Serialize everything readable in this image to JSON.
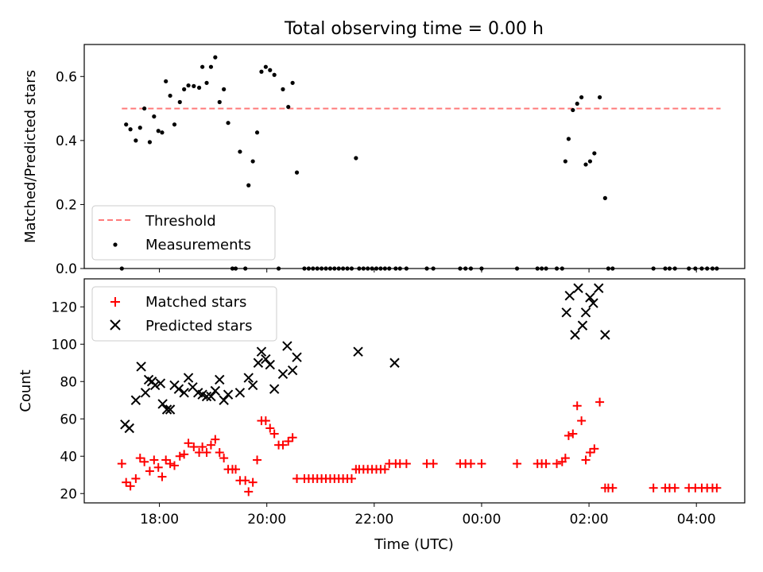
{
  "title": "Total observing time = 0.00 h",
  "chart_data": [
    {
      "type": "scatter",
      "panel": "top",
      "ylabel": "Matched/Predicted stars",
      "ylim": [
        0,
        0.7
      ],
      "yticks": [
        0.0,
        0.2,
        0.4,
        0.6
      ],
      "ytick_labels": [
        "0.0",
        "0.2",
        "0.4",
        "0.6"
      ],
      "xlim": [
        16.6,
        28.9
      ],
      "threshold": {
        "name": "Threshold",
        "value": 0.5,
        "x_start": 17.3,
        "x_end": 28.45,
        "color": "#ff7b7b"
      },
      "legend": {
        "position": "lower-left",
        "entries": [
          "Threshold",
          "Measurements"
        ]
      },
      "series": [
        {
          "name": "Measurements",
          "marker": "dot",
          "color": "#000000",
          "points": [
            [
              17.3,
              0.0
            ],
            [
              17.38,
              0.45
            ],
            [
              17.46,
              0.435
            ],
            [
              17.56,
              0.4
            ],
            [
              17.64,
              0.44
            ],
            [
              17.72,
              0.5
            ],
            [
              17.82,
              0.395
            ],
            [
              17.9,
              0.475
            ],
            [
              17.98,
              0.43
            ],
            [
              18.05,
              0.425
            ],
            [
              18.12,
              0.585
            ],
            [
              18.2,
              0.54
            ],
            [
              18.28,
              0.45
            ],
            [
              18.38,
              0.52
            ],
            [
              18.46,
              0.56
            ],
            [
              18.54,
              0.572
            ],
            [
              18.64,
              0.57
            ],
            [
              18.74,
              0.565
            ],
            [
              18.8,
              0.63
            ],
            [
              18.88,
              0.58
            ],
            [
              18.96,
              0.63
            ],
            [
              19.04,
              0.66
            ],
            [
              19.12,
              0.52
            ],
            [
              19.2,
              0.56
            ],
            [
              19.28,
              0.455
            ],
            [
              19.36,
              0.0
            ],
            [
              19.42,
              0.0
            ],
            [
              19.5,
              0.365
            ],
            [
              19.6,
              0.0
            ],
            [
              19.66,
              0.26
            ],
            [
              19.74,
              0.335
            ],
            [
              19.82,
              0.425
            ],
            [
              19.9,
              0.615
            ],
            [
              19.98,
              0.63
            ],
            [
              20.06,
              0.62
            ],
            [
              20.14,
              0.605
            ],
            [
              20.22,
              0.0
            ],
            [
              20.3,
              0.56
            ],
            [
              20.4,
              0.505
            ],
            [
              20.48,
              0.58
            ],
            [
              20.56,
              0.3
            ],
            [
              20.7,
              0.0
            ],
            [
              20.78,
              0.0
            ],
            [
              20.86,
              0.0
            ],
            [
              20.94,
              0.0
            ],
            [
              21.02,
              0.0
            ],
            [
              21.1,
              0.0
            ],
            [
              21.18,
              0.0
            ],
            [
              21.26,
              0.0
            ],
            [
              21.34,
              0.0
            ],
            [
              21.42,
              0.0
            ],
            [
              21.5,
              0.0
            ],
            [
              21.58,
              0.0
            ],
            [
              21.66,
              0.345
            ],
            [
              21.72,
              0.0
            ],
            [
              21.8,
              0.0
            ],
            [
              21.88,
              0.0
            ],
            [
              21.96,
              0.0
            ],
            [
              22.04,
              0.0
            ],
            [
              22.12,
              0.0
            ],
            [
              22.2,
              0.0
            ],
            [
              22.28,
              0.0
            ],
            [
              22.4,
              0.0
            ],
            [
              22.48,
              0.0
            ],
            [
              22.6,
              0.0
            ],
            [
              22.98,
              0.0
            ],
            [
              23.1,
              0.0
            ],
            [
              23.6,
              0.0
            ],
            [
              23.7,
              0.0
            ],
            [
              23.8,
              0.0
            ],
            [
              24.0,
              0.0
            ],
            [
              24.66,
              0.0
            ],
            [
              25.04,
              0.0
            ],
            [
              25.12,
              0.0
            ],
            [
              25.2,
              0.0
            ],
            [
              25.4,
              0.0
            ],
            [
              25.5,
              0.0
            ],
            [
              25.56,
              0.335
            ],
            [
              25.62,
              0.405
            ],
            [
              25.7,
              0.495
            ],
            [
              25.78,
              0.515
            ],
            [
              25.86,
              0.535
            ],
            [
              25.94,
              0.325
            ],
            [
              26.02,
              0.335
            ],
            [
              26.1,
              0.36
            ],
            [
              26.2,
              0.535
            ],
            [
              26.3,
              0.22
            ],
            [
              26.36,
              0.0
            ],
            [
              26.44,
              0.0
            ],
            [
              27.2,
              0.0
            ],
            [
              27.42,
              0.0
            ],
            [
              27.5,
              0.0
            ],
            [
              27.6,
              0.0
            ],
            [
              27.86,
              0.0
            ],
            [
              27.98,
              0.0
            ],
            [
              28.1,
              0.0
            ],
            [
              28.2,
              0.0
            ],
            [
              28.3,
              0.0
            ],
            [
              28.38,
              0.0
            ]
          ]
        }
      ]
    },
    {
      "type": "scatter",
      "panel": "bottom",
      "xlabel": "Time (UTC)",
      "ylabel": "Count",
      "ylim": [
        15,
        135
      ],
      "yticks": [
        20,
        40,
        60,
        80,
        100,
        120
      ],
      "ytick_labels": [
        "20",
        "40",
        "60",
        "80",
        "100",
        "120"
      ],
      "xlim": [
        16.6,
        28.9
      ],
      "xticks": [
        18,
        20,
        22,
        24,
        26,
        28
      ],
      "xtick_labels": [
        "18:00",
        "20:00",
        "22:00",
        "00:00",
        "02:00",
        "04:00"
      ],
      "legend": {
        "position": "top-left",
        "entries": [
          "Matched stars",
          "Predicted stars"
        ]
      },
      "series": [
        {
          "name": "Matched stars",
          "marker": "plus",
          "color": "#ff0000",
          "points": [
            [
              17.3,
              36
            ],
            [
              17.38,
              26
            ],
            [
              17.46,
              24
            ],
            [
              17.56,
              28
            ],
            [
              17.64,
              39
            ],
            [
              17.72,
              37
            ],
            [
              17.82,
              32
            ],
            [
              17.9,
              38
            ],
            [
              17.98,
              34
            ],
            [
              18.05,
              29
            ],
            [
              18.12,
              38
            ],
            [
              18.2,
              36
            ],
            [
              18.28,
              35
            ],
            [
              18.38,
              40
            ],
            [
              18.46,
              41
            ],
            [
              18.54,
              47
            ],
            [
              18.64,
              45
            ],
            [
              18.74,
              42
            ],
            [
              18.8,
              45
            ],
            [
              18.88,
              42
            ],
            [
              18.96,
              46
            ],
            [
              19.04,
              49
            ],
            [
              19.12,
              42
            ],
            [
              19.2,
              39
            ],
            [
              19.28,
              33
            ],
            [
              19.36,
              33
            ],
            [
              19.42,
              33
            ],
            [
              19.5,
              27
            ],
            [
              19.6,
              27
            ],
            [
              19.66,
              21
            ],
            [
              19.74,
              26
            ],
            [
              19.82,
              38
            ],
            [
              19.9,
              59
            ],
            [
              19.98,
              59
            ],
            [
              20.06,
              55
            ],
            [
              20.14,
              52
            ],
            [
              20.22,
              46
            ],
            [
              20.3,
              46
            ],
            [
              20.4,
              48
            ],
            [
              20.48,
              50
            ],
            [
              20.56,
              28
            ],
            [
              20.7,
              28
            ],
            [
              20.78,
              28
            ],
            [
              20.86,
              28
            ],
            [
              20.94,
              28
            ],
            [
              21.02,
              28
            ],
            [
              21.1,
              28
            ],
            [
              21.18,
              28
            ],
            [
              21.26,
              28
            ],
            [
              21.34,
              28
            ],
            [
              21.42,
              28
            ],
            [
              21.5,
              28
            ],
            [
              21.58,
              28
            ],
            [
              21.66,
              33
            ],
            [
              21.72,
              33
            ],
            [
              21.8,
              33
            ],
            [
              21.88,
              33
            ],
            [
              21.96,
              33
            ],
            [
              22.04,
              33
            ],
            [
              22.12,
              33
            ],
            [
              22.2,
              33
            ],
            [
              22.28,
              36
            ],
            [
              22.4,
              36
            ],
            [
              22.48,
              36
            ],
            [
              22.6,
              36
            ],
            [
              22.98,
              36
            ],
            [
              23.1,
              36
            ],
            [
              23.6,
              36
            ],
            [
              23.7,
              36
            ],
            [
              23.8,
              36
            ],
            [
              24.0,
              36
            ],
            [
              24.66,
              36
            ],
            [
              25.04,
              36
            ],
            [
              25.12,
              36
            ],
            [
              25.2,
              36
            ],
            [
              25.4,
              36
            ],
            [
              25.5,
              37
            ],
            [
              25.56,
              39
            ],
            [
              25.62,
              51
            ],
            [
              25.7,
              52
            ],
            [
              25.78,
              67
            ],
            [
              25.86,
              59
            ],
            [
              25.94,
              38
            ],
            [
              26.02,
              42
            ],
            [
              26.1,
              44
            ],
            [
              26.2,
              69
            ],
            [
              26.3,
              23
            ],
            [
              26.36,
              23
            ],
            [
              26.44,
              23
            ],
            [
              27.2,
              23
            ],
            [
              27.42,
              23
            ],
            [
              27.5,
              23
            ],
            [
              27.6,
              23
            ],
            [
              27.86,
              23
            ],
            [
              27.98,
              23
            ],
            [
              28.1,
              23
            ],
            [
              28.2,
              23
            ],
            [
              28.3,
              23
            ],
            [
              28.38,
              23
            ]
          ]
        },
        {
          "name": "Predicted stars",
          "marker": "x",
          "color": "#000000",
          "points": [
            [
              17.36,
              57
            ],
            [
              17.44,
              55
            ],
            [
              17.56,
              70
            ],
            [
              17.66,
              88
            ],
            [
              17.74,
              74
            ],
            [
              17.8,
              81
            ],
            [
              17.86,
              80
            ],
            [
              17.92,
              78
            ],
            [
              18.02,
              79
            ],
            [
              18.06,
              68
            ],
            [
              18.14,
              65
            ],
            [
              18.2,
              65
            ],
            [
              18.28,
              78
            ],
            [
              18.36,
              76
            ],
            [
              18.46,
              74
            ],
            [
              18.54,
              82
            ],
            [
              18.62,
              77
            ],
            [
              18.72,
              74
            ],
            [
              18.8,
              73
            ],
            [
              18.88,
              72
            ],
            [
              18.96,
              72
            ],
            [
              19.04,
              75
            ],
            [
              19.12,
              81
            ],
            [
              19.2,
              70
            ],
            [
              19.28,
              73
            ],
            [
              19.5,
              74
            ],
            [
              19.66,
              82
            ],
            [
              19.74,
              78
            ],
            [
              19.84,
              90
            ],
            [
              19.9,
              96
            ],
            [
              19.98,
              92
            ],
            [
              20.06,
              89
            ],
            [
              20.14,
              76
            ],
            [
              20.3,
              84
            ],
            [
              20.38,
              99
            ],
            [
              20.48,
              86
            ],
            [
              20.56,
              93
            ],
            [
              21.7,
              96
            ],
            [
              22.38,
              90
            ],
            [
              25.58,
              117
            ],
            [
              25.64,
              126
            ],
            [
              25.74,
              105
            ],
            [
              25.8,
              130
            ],
            [
              25.88,
              110
            ],
            [
              25.94,
              117
            ],
            [
              26.02,
              125
            ],
            [
              26.08,
              122
            ],
            [
              26.18,
              130
            ],
            [
              26.3,
              105
            ]
          ]
        }
      ]
    }
  ]
}
